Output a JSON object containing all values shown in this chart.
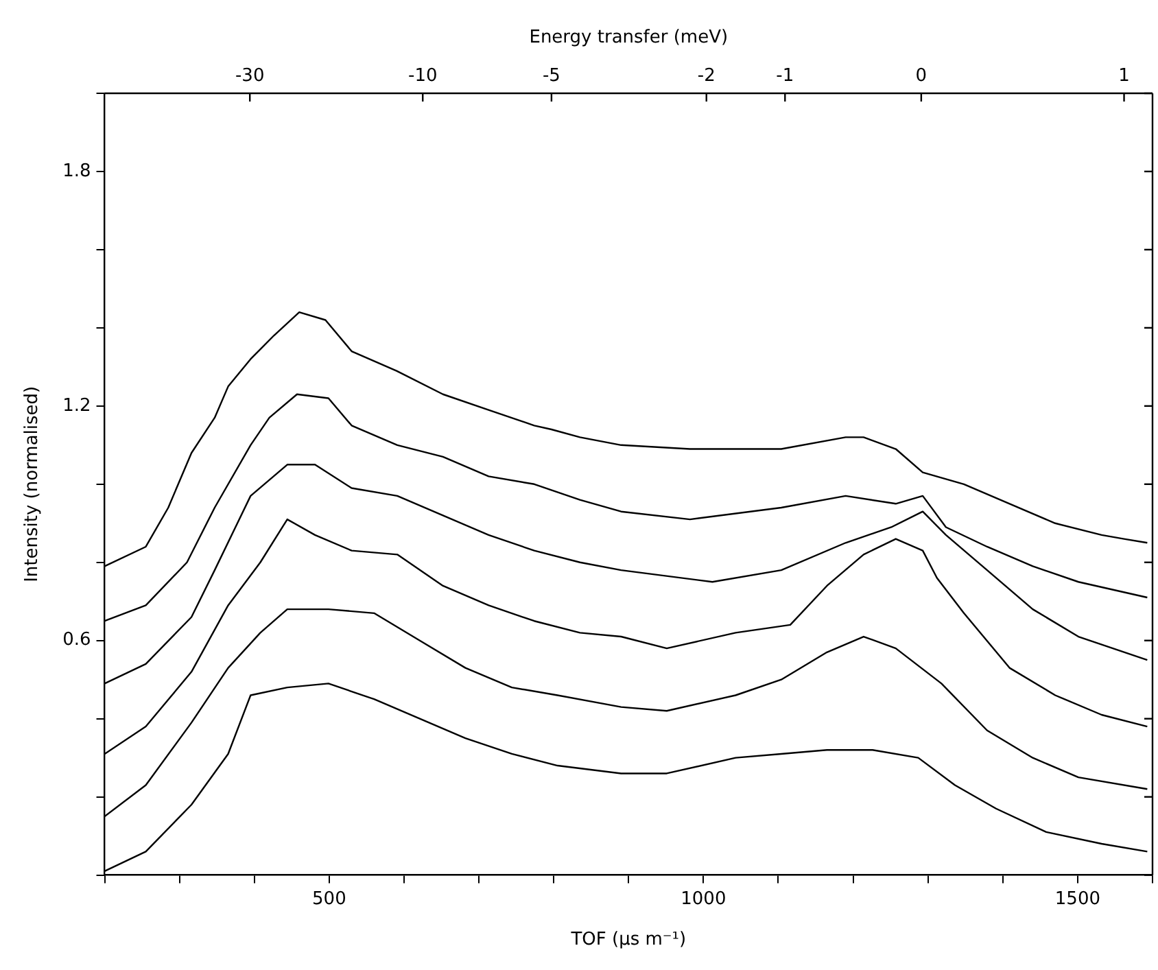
{
  "chart_data": {
    "type": "line",
    "xlabel": "TOF (μs m⁻¹)",
    "ylabel": "Intensity (normalised)",
    "annotations": [
      "Energy transfer (meV)",
      {
        "text": "-30",
        "x": 394
      },
      {
        "text": "-10",
        "x": 625
      },
      {
        "text": "-5",
        "x": 797
      },
      {
        "text": "-2",
        "x": 1004
      },
      {
        "text": "-1",
        "x": 1109
      },
      {
        "text": "0",
        "x": 1291
      },
      {
        "text": "1",
        "x": 1562
      }
    ],
    "xlim": [
      200,
      1600
    ],
    "ylim": [
      0,
      2
    ],
    "xticks": [
      {
        "value": 200,
        "label": null
      },
      {
        "value": 300,
        "label": null
      },
      {
        "value": 400,
        "label": null
      },
      500,
      {
        "value": 600,
        "label": null
      },
      {
        "value": 700,
        "label": null
      },
      {
        "value": 800,
        "label": null
      },
      {
        "value": 900,
        "label": null
      },
      1000,
      {
        "value": 1100,
        "label": null
      },
      {
        "value": 1200,
        "label": null
      },
      {
        "value": 1300,
        "label": null
      },
      {
        "value": 1400,
        "label": null
      },
      1500,
      {
        "value": 1600,
        "label": null
      }
    ],
    "yticks": [
      {
        "value": 0,
        "label": null
      },
      {
        "value": 0.2,
        "label": null
      },
      {
        "value": 0.4,
        "label": null
      },
      0.6,
      {
        "value": 0.8,
        "label": null
      },
      {
        "value": 1.0,
        "label": null
      },
      1.2,
      {
        "value": 1.4,
        "label": null
      },
      {
        "value": 1.6,
        "label": null
      },
      1.8,
      {
        "value": 2.0,
        "label": null
      }
    ],
    "grid": false,
    "legend": false,
    "marker": "none",
    "line_style": "solid",
    "series": [
      {
        "color": "#000000",
        "x": [
          200,
          255,
          285,
          316,
          347,
          365,
          395,
          426,
          460,
          495,
          530,
          590,
          652,
          713,
          774,
          797,
          835,
          890,
          982,
          1004,
          1104,
          1190,
          1214,
          1257,
          1293,
          1348,
          1409,
          1470,
          1532,
          1562,
          1593
        ],
        "values": [
          0.79,
          0.84,
          0.94,
          1.08,
          1.17,
          1.25,
          1.32,
          1.38,
          1.44,
          1.42,
          1.34,
          1.29,
          1.23,
          1.19,
          1.15,
          1.14,
          1.12,
          1.1,
          1.09,
          1.09,
          1.09,
          1.12,
          1.12,
          1.09,
          1.03,
          1.0,
          0.95,
          0.9,
          0.87,
          0.86,
          0.85
        ]
      },
      {
        "color": "#000000",
        "x": [
          200,
          255,
          310,
          347,
          395,
          420,
          457,
          499,
          530,
          591,
          652,
          713,
          774,
          835,
          890,
          982,
          1104,
          1190,
          1257,
          1293,
          1324,
          1379,
          1440,
          1501,
          1593
        ],
        "values": [
          0.65,
          0.69,
          0.8,
          0.94,
          1.1,
          1.17,
          1.23,
          1.22,
          1.15,
          1.1,
          1.07,
          1.02,
          1.0,
          0.96,
          0.93,
          0.91,
          0.94,
          0.97,
          0.95,
          0.97,
          0.89,
          0.84,
          0.79,
          0.75,
          0.71
        ]
      },
      {
        "color": "#000000",
        "x": [
          200,
          255,
          316,
          347,
          395,
          444,
          481,
          530,
          591,
          652,
          713,
          774,
          835,
          890,
          1012,
          1104,
          1190,
          1251,
          1293,
          1324,
          1379,
          1440,
          1501,
          1593
        ],
        "values": [
          0.49,
          0.54,
          0.66,
          0.78,
          0.97,
          1.05,
          1.05,
          0.99,
          0.97,
          0.92,
          0.87,
          0.83,
          0.8,
          0.78,
          0.75,
          0.78,
          0.85,
          0.89,
          0.93,
          0.87,
          0.78,
          0.68,
          0.61,
          0.55
        ]
      },
      {
        "color": "#000000",
        "x": [
          200,
          255,
          316,
          365,
          408,
          444,
          481,
          530,
          591,
          652,
          713,
          774,
          835,
          890,
          951,
          1043,
          1116,
          1165,
          1214,
          1257,
          1293,
          1312,
          1348,
          1409,
          1470,
          1532,
          1593
        ],
        "values": [
          0.31,
          0.38,
          0.52,
          0.69,
          0.8,
          0.91,
          0.87,
          0.83,
          0.82,
          0.74,
          0.69,
          0.65,
          0.62,
          0.61,
          0.58,
          0.62,
          0.64,
          0.74,
          0.82,
          0.86,
          0.83,
          0.76,
          0.67,
          0.53,
          0.46,
          0.41,
          0.38
        ]
      },
      {
        "color": "#000000",
        "x": [
          200,
          255,
          316,
          365,
          408,
          444,
          499,
          560,
          621,
          682,
          744,
          805,
          890,
          951,
          1043,
          1104,
          1165,
          1214,
          1257,
          1318,
          1379,
          1440,
          1501,
          1593
        ],
        "values": [
          0.15,
          0.23,
          0.39,
          0.53,
          0.62,
          0.68,
          0.68,
          0.67,
          0.6,
          0.53,
          0.48,
          0.46,
          0.43,
          0.42,
          0.46,
          0.5,
          0.57,
          0.61,
          0.58,
          0.49,
          0.37,
          0.3,
          0.25,
          0.22
        ]
      },
      {
        "color": "#000000",
        "x": [
          200,
          255,
          316,
          365,
          395,
          444,
          499,
          560,
          621,
          682,
          744,
          805,
          890,
          951,
          1043,
          1104,
          1165,
          1226,
          1287,
          1336,
          1391,
          1458,
          1532,
          1593
        ],
        "values": [
          0.01,
          0.06,
          0.18,
          0.31,
          0.46,
          0.48,
          0.49,
          0.45,
          0.4,
          0.35,
          0.31,
          0.28,
          0.26,
          0.26,
          0.3,
          0.31,
          0.32,
          0.32,
          0.3,
          0.23,
          0.17,
          0.11,
          0.08,
          0.06
        ]
      }
    ]
  }
}
